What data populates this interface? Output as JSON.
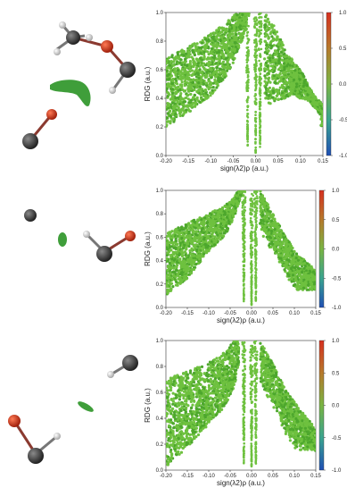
{
  "chart_data": [
    {
      "type": "scatter",
      "xlabel": "sign(λ2)ρ (a.u.)",
      "ylabel": "RDG (a.u.)",
      "xlim": [
        -0.2,
        0.15
      ],
      "ylim": [
        0.0,
        1.0
      ],
      "x_ticks": [
        "-0.20",
        "-0.15",
        "-0.10",
        "-0.05",
        "0.00",
        "0.05",
        "0.10",
        "0.15"
      ],
      "y_ticks": [
        "0.0",
        "0.2",
        "0.4",
        "0.6",
        "0.8",
        "1.0"
      ],
      "colorbar": {
        "min": -1.0,
        "max": 1.0,
        "ticks": [
          "1.0",
          "0.5",
          "0.0",
          "-0.5",
          "-1.0"
        ]
      },
      "series": [
        {
          "x": [
            -0.2,
            -0.15,
            -0.1,
            -0.06,
            -0.04,
            -0.03,
            -0.02
          ],
          "y": [
            0.68,
            0.76,
            0.85,
            0.95,
            1.0,
            1.0,
            1.0
          ]
        },
        {
          "x": [
            -0.2,
            -0.15,
            -0.1,
            -0.06,
            -0.04,
            -0.025,
            -0.015
          ],
          "y": [
            0.2,
            0.3,
            0.42,
            0.58,
            0.72,
            0.85,
            1.0
          ]
        },
        {
          "x": [
            0.02,
            0.04,
            0.07,
            0.1,
            0.13,
            0.15
          ],
          "y": [
            1.0,
            0.92,
            0.72,
            0.6,
            0.42,
            0.36
          ]
        },
        {
          "x": [
            0.02,
            0.03,
            0.05,
            0.08,
            0.12,
            0.145
          ],
          "y": [
            0.4,
            0.36,
            0.38,
            0.42,
            0.38,
            0.28
          ]
        }
      ]
    },
    {
      "type": "scatter",
      "xlabel": "sign(λ2)ρ (a.u.)",
      "ylabel": "RDG (a.u.)",
      "xlim": [
        -0.2,
        0.15
      ],
      "ylim": [
        0.0,
        1.0
      ],
      "x_ticks": [
        "-0.20",
        "-0.15",
        "-0.10",
        "-0.05",
        "0.00",
        "0.05",
        "0.10",
        "0.15"
      ],
      "y_ticks": [
        "0.0",
        "0.2",
        "0.4",
        "0.6",
        "0.8",
        "1.0"
      ],
      "colorbar": {
        "min": -1.0,
        "max": 1.0,
        "ticks": [
          "1.0",
          "0.5",
          "0.0",
          "-0.5",
          "-1.0"
        ]
      },
      "series": [
        {
          "x": [
            -0.2,
            -0.15,
            -0.1,
            -0.05,
            -0.03,
            -0.02
          ],
          "y": [
            0.63,
            0.72,
            0.8,
            0.9,
            1.0,
            1.0
          ]
        },
        {
          "x": [
            -0.2,
            -0.15,
            -0.1,
            -0.06,
            -0.04,
            -0.02
          ],
          "y": [
            0.1,
            0.25,
            0.48,
            0.62,
            0.78,
            1.0
          ]
        },
        {
          "x": [
            0.02,
            0.05,
            0.08,
            0.11,
            0.14,
            0.15
          ],
          "y": [
            1.0,
            0.8,
            0.6,
            0.45,
            0.35,
            0.3
          ]
        }
      ]
    },
    {
      "type": "scatter",
      "xlabel": "sign(λ2)ρ (a.u.)",
      "ylabel": "RDG (a.u.)",
      "xlim": [
        -0.2,
        0.15
      ],
      "ylim": [
        0.0,
        1.0
      ],
      "x_ticks": [
        "-0.20",
        "-0.15",
        "-0.10",
        "-0.05",
        "0.00",
        "0.05",
        "0.10",
        "0.15"
      ],
      "y_ticks": [
        "0.0",
        "0.2",
        "0.4",
        "0.6",
        "0.8",
        "1.0"
      ],
      "colorbar": {
        "min": -1.0,
        "max": 1.0,
        "ticks": [
          "1.0",
          "0.5",
          "0.0",
          "-0.5",
          "-1.0"
        ]
      },
      "series": [
        {
          "x": [
            -0.2,
            -0.15,
            -0.1,
            -0.06,
            -0.04,
            -0.03
          ],
          "y": [
            0.7,
            0.76,
            0.83,
            0.92,
            1.0,
            1.0
          ]
        },
        {
          "x": [
            -0.2,
            -0.15,
            -0.1,
            -0.06,
            -0.04,
            -0.02
          ],
          "y": [
            0.02,
            0.18,
            0.35,
            0.5,
            0.65,
            1.0
          ]
        },
        {
          "x": [
            0.02,
            0.05,
            0.08,
            0.11,
            0.14,
            0.15
          ],
          "y": [
            1.0,
            0.82,
            0.62,
            0.48,
            0.36,
            0.3
          ]
        }
      ]
    }
  ],
  "colors": {
    "scatter": "#6ec13f",
    "scatter_dark": "#4da72d",
    "blob": "#3f9e3a",
    "oxygen": "#d2381f",
    "carbon": "#3a3a3a",
    "hydrogen": "#e9e9e9",
    "colorbar_top": "#d7301f",
    "colorbar_mid": "#79b443",
    "colorbar_bottom": "#1f4fb4"
  },
  "molecules": [
    {
      "atoms": [
        "carbon",
        "hydrogen",
        "hydrogen",
        "hydrogen",
        "oxygen",
        "carbon",
        "hydrogen"
      ],
      "blob": true
    },
    {
      "atoms": [
        "carbon",
        "hydrogen",
        "oxygen",
        "carbon"
      ],
      "blob": true
    },
    {
      "atoms": [
        "carbon",
        "hydrogen",
        "oxygen",
        "carbon",
        "hydrogen"
      ],
      "blob": true
    }
  ]
}
